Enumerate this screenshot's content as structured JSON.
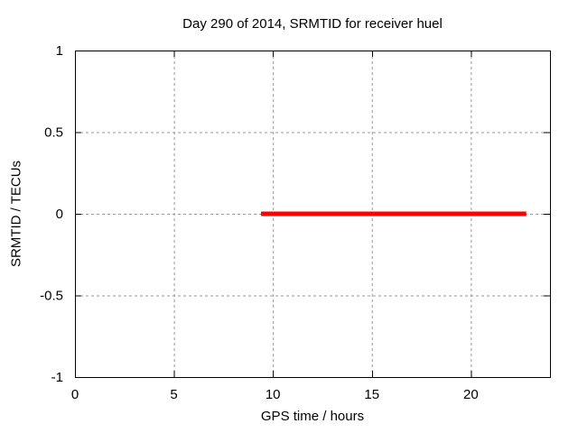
{
  "chart_data": {
    "type": "line",
    "title": "Day 290 of 2014, SRMTID for receiver huel",
    "xlabel": "GPS time / hours",
    "ylabel": "SRMTID / TECUs",
    "xlim": [
      0,
      24
    ],
    "ylim": [
      -1,
      1
    ],
    "xticks": [
      0,
      5,
      10,
      15,
      20
    ],
    "yticks": [
      -1,
      -0.5,
      0,
      0.5,
      1
    ],
    "grid": true,
    "legend": "none",
    "series": [
      {
        "name": "SRMTID",
        "color": "#ff0000",
        "linewidth": 5,
        "x": [
          9.4,
          22.8
        ],
        "y": [
          0,
          0
        ]
      }
    ]
  },
  "colors": {
    "background": "#ffffff",
    "border": "#000000",
    "grid": "#9a9a9a",
    "tick": "#000000",
    "text": "#000000"
  }
}
